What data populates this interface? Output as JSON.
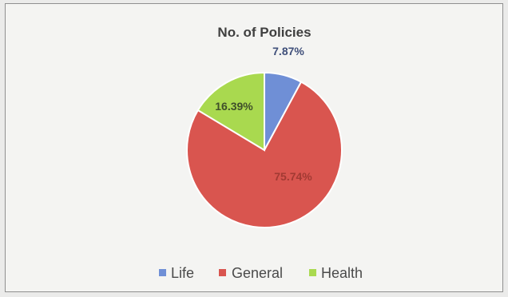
{
  "chart_data": {
    "type": "pie",
    "title": "No. of Policies",
    "slices": [
      {
        "name": "Life",
        "value": 7.87,
        "label": "7.87%",
        "color": "#6f8fd6"
      },
      {
        "name": "General",
        "value": 75.74,
        "label": "75.74%",
        "color": "#d9554f"
      },
      {
        "name": "Health",
        "value": 16.39,
        "label": "16.39%",
        "color": "#a9d94f"
      }
    ],
    "legend_position": "bottom"
  }
}
